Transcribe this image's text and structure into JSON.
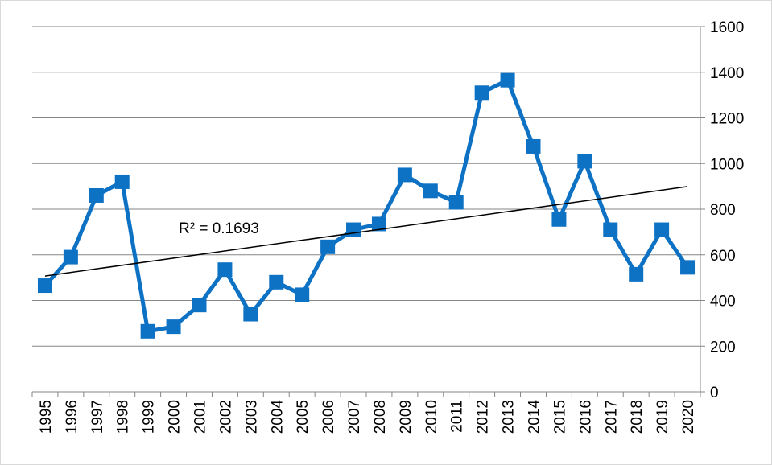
{
  "chart_data": {
    "type": "line",
    "categories": [
      "1995",
      "1996",
      "1997",
      "1998",
      "1999",
      "2000",
      "2001",
      "2002",
      "2003",
      "2004",
      "2005",
      "2006",
      "2007",
      "2008",
      "2009",
      "2010",
      "2011",
      "2012",
      "2013",
      "2014",
      "2015",
      "2016",
      "2017",
      "2018",
      "2019",
      "2020"
    ],
    "series": [
      {
        "color": "#0e72c4",
        "values": [
          465,
          590,
          860,
          920,
          265,
          285,
          380,
          535,
          340,
          480,
          425,
          635,
          710,
          735,
          950,
          880,
          830,
          1310,
          1365,
          1075,
          755,
          1010,
          710,
          515,
          710,
          545
        ]
      }
    ],
    "ylim": [
      0,
      1600
    ],
    "yticks": [
      0,
      200,
      400,
      600,
      800,
      1000,
      1200,
      1400,
      1600
    ],
    "yaxis_side": "right",
    "grid": true,
    "marker": "square",
    "trendline": {
      "type": "linear",
      "label": "R² = 0.1693"
    }
  }
}
